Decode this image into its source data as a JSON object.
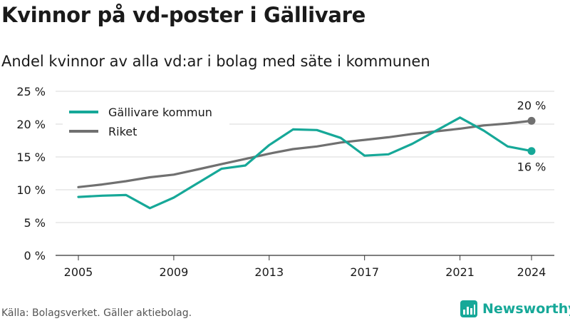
{
  "title": "Kvinnor på vd-poster i Gällivare",
  "subtitle": "Andel kvinnor av alla vd:ar i bolag med säte i kommunen",
  "source": "Källa: Bolagsverket. Gäller aktiebolag.",
  "brand": "Newsworthy",
  "colors": {
    "kommun": "#16a898",
    "riket": "#707070",
    "grid": "#d9d9d9",
    "brand": "#16a898"
  },
  "chart_data": {
    "type": "line",
    "x": [
      2005,
      2006,
      2007,
      2008,
      2009,
      2010,
      2011,
      2012,
      2013,
      2014,
      2015,
      2016,
      2017,
      2018,
      2019,
      2020,
      2021,
      2022,
      2023,
      2024
    ],
    "series": [
      {
        "name": "Gällivare kommun",
        "values": [
          8.9,
          9.1,
          9.2,
          7.2,
          8.8,
          11.0,
          13.2,
          13.7,
          16.8,
          19.2,
          19.1,
          17.9,
          15.2,
          15.4,
          17.0,
          19.0,
          21.0,
          19.0,
          16.6,
          15.9
        ]
      },
      {
        "name": "Riket",
        "values": [
          10.4,
          10.8,
          11.3,
          11.9,
          12.3,
          13.1,
          13.9,
          14.7,
          15.5,
          16.2,
          16.6,
          17.2,
          17.6,
          18.0,
          18.5,
          18.9,
          19.3,
          19.8,
          20.1,
          20.5
        ]
      }
    ],
    "xticks": [
      2005,
      2009,
      2013,
      2017,
      2021,
      2024
    ],
    "yticks": [
      0,
      5,
      10,
      15,
      20,
      25
    ],
    "ylim": [
      0,
      25
    ],
    "ytick_suffix": " %",
    "end_labels": {
      "riket": "20 %",
      "kommun": "16 %"
    },
    "grid": true,
    "legend": "top-left"
  }
}
